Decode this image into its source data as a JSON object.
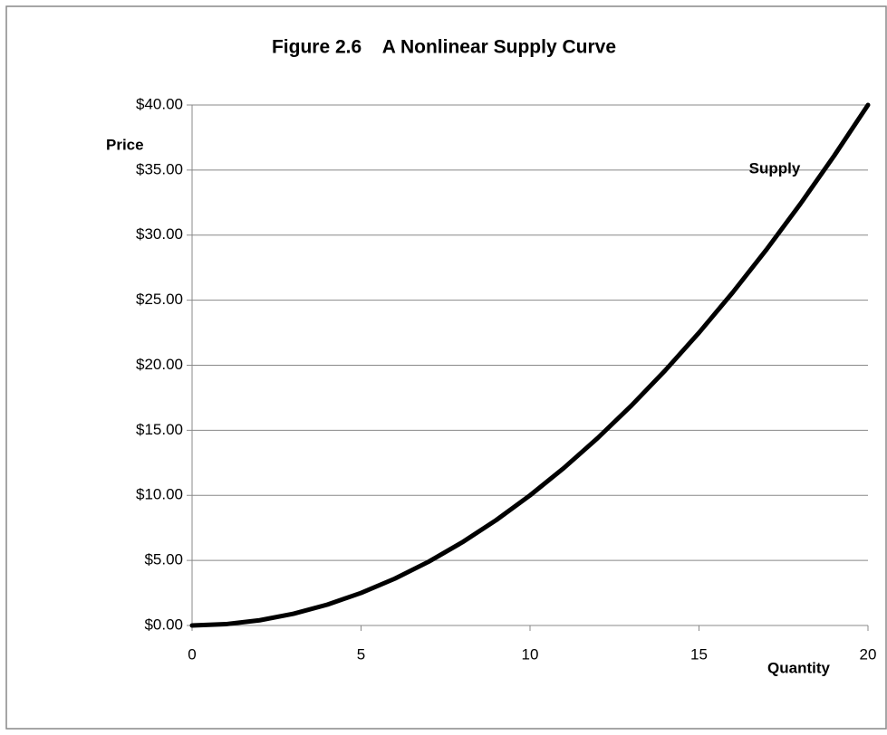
{
  "chart_data": {
    "type": "line",
    "title": "Figure 2.6    A Nonlinear Supply Curve",
    "x_label": "Quantity",
    "y_label": "Price",
    "x": [
      0,
      1,
      2,
      3,
      4,
      5,
      6,
      7,
      8,
      9,
      10,
      11,
      12,
      13,
      14,
      15,
      16,
      17,
      18,
      19,
      20
    ],
    "series": [
      {
        "name": "Supply",
        "color": "#000000",
        "values": [
          0,
          0.1,
          0.4,
          0.9,
          1.6,
          2.5,
          3.6,
          4.9,
          6.4,
          8.1,
          10,
          12.1,
          14.4,
          16.9,
          19.6,
          22.5,
          25.6,
          28.9,
          32.4,
          36.1,
          40
        ]
      }
    ],
    "xlim": [
      0,
      20
    ],
    "xticks": [
      0,
      5,
      10,
      15,
      20
    ],
    "ylim": [
      0,
      40
    ],
    "yticks": [
      {
        "value": 0,
        "label": "$0.00"
      },
      {
        "value": 5,
        "label": "$5.00"
      },
      {
        "value": 10,
        "label": "$10.00"
      },
      {
        "value": 15,
        "label": "$15.00"
      },
      {
        "value": 20,
        "label": "$20.00"
      },
      {
        "value": 25,
        "label": "$25.00"
      },
      {
        "value": 30,
        "label": "$30.00"
      },
      {
        "value": 35,
        "label": "$35.00"
      },
      {
        "value": 40,
        "label": "$40.00"
      }
    ],
    "grid": true
  }
}
